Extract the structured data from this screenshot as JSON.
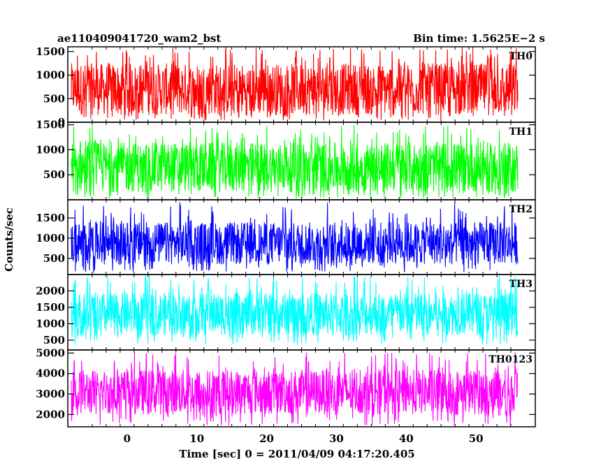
{
  "chart_data": {
    "type": "line",
    "title": "ae110409041720_wam2_bst",
    "bin_time_label": "Bin time: 1.5625E−2 s",
    "xlabel": "Time [sec] 0 = 2011/04/09 04:17:20.405",
    "ylabel": "Counts/sec",
    "xlim": [
      -8.5,
      58.5
    ],
    "data_xrange": [
      -8.0,
      56.0
    ],
    "bin_time": 0.015625,
    "x_ticks": [
      0,
      10,
      20,
      30,
      40,
      50
    ],
    "x_tick_labels": [
      "0",
      "10",
      "20",
      "30",
      "40",
      "50"
    ],
    "grid": false,
    "legend": "none",
    "panels": [
      {
        "name": "TH0",
        "color": "#ff0000",
        "ylim": [
          0,
          1600
        ],
        "y_ticks": [
          0,
          500,
          1000,
          1500
        ],
        "y_tick_labels": [
          "0",
          "500",
          "1000",
          "1500"
        ],
        "typical_range": [
          150,
          1250
        ],
        "extreme_range": [
          40,
          1600
        ]
      },
      {
        "name": "TH1",
        "color": "#00ff00",
        "ylim": [
          0,
          1550
        ],
        "y_ticks": [
          500,
          1000,
          1500
        ],
        "y_tick_labels": [
          "500",
          "1000",
          "1500"
        ],
        "typical_range": [
          150,
          1150
        ],
        "extreme_range": [
          20,
          1500
        ]
      },
      {
        "name": "TH2",
        "color": "#0000ff",
        "ylim": [
          100,
          1950
        ],
        "y_ticks": [
          500,
          1000,
          1500
        ],
        "y_tick_labels": [
          "500",
          "1000",
          "1500"
        ],
        "typical_range": [
          350,
          1400
        ],
        "extreme_range": [
          150,
          1900
        ]
      },
      {
        "name": "TH3",
        "color": "#00ffff",
        "ylim": [
          200,
          2500
        ],
        "y_ticks": [
          500,
          1000,
          1500,
          2000
        ],
        "y_tick_labels": [
          "500",
          "1000",
          "1500",
          "2000"
        ],
        "typical_range": [
          650,
          1950
        ],
        "extreme_range": [
          350,
          2500
        ]
      },
      {
        "name": "TH0123",
        "color": "#ff00ff",
        "ylim": [
          1400,
          5150
        ],
        "y_ticks": [
          2000,
          3000,
          4000,
          5000
        ],
        "y_tick_labels": [
          "2000",
          "3000",
          "4000",
          "5000"
        ],
        "typical_range": [
          2000,
          4200
        ],
        "extreme_range": [
          1450,
          5050
        ]
      }
    ]
  }
}
